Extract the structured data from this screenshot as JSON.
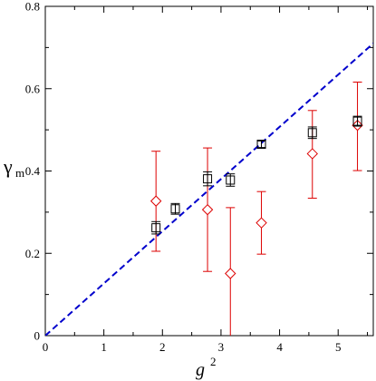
{
  "chart_data": {
    "type": "scatter",
    "xlabel": "g",
    "xlabel_superscript": "2",
    "ylabel": "γ",
    "ylabel_subscript": "m",
    "xlim": [
      0,
      5.6
    ],
    "ylim": [
      0,
      0.8
    ],
    "x_ticks": [
      0,
      1,
      2,
      3,
      4,
      5
    ],
    "y_ticks": [
      0,
      0.2,
      0.4,
      0.6,
      0.8
    ],
    "x_tick_labels": [
      "0",
      "1",
      "2",
      "3",
      "4",
      "5"
    ],
    "y_tick_labels": [
      "0",
      "0.2",
      "0.4",
      "0.6",
      "0.8"
    ],
    "grid": false,
    "series": [
      {
        "marker": "square",
        "color": "#000000",
        "x": [
          1.89,
          2.22,
          2.77,
          3.16,
          3.69,
          4.56,
          5.33
        ],
        "y": [
          0.262,
          0.308,
          0.381,
          0.378,
          0.465,
          0.493,
          0.521
        ],
        "err": [
          0.015,
          0.013,
          0.017,
          0.015,
          0.008,
          0.014,
          0.012
        ]
      },
      {
        "marker": "diamond",
        "color": "#dd0000",
        "x": [
          1.89,
          2.77,
          3.16,
          3.69,
          4.56,
          5.33
        ],
        "y": [
          0.327,
          0.306,
          0.151,
          0.274,
          0.442,
          0.511
        ],
        "err_low": [
          0.122,
          0.15,
          0.16,
          0.076,
          0.108,
          0.11
        ],
        "err_high": [
          0.121,
          0.15,
          0.16,
          0.076,
          0.105,
          0.105
        ]
      },
      {
        "marker": "none",
        "style": "dashed",
        "color": "#0000cc",
        "x": [
          0,
          5.6
        ],
        "y": [
          0,
          0.71
        ]
      }
    ]
  }
}
